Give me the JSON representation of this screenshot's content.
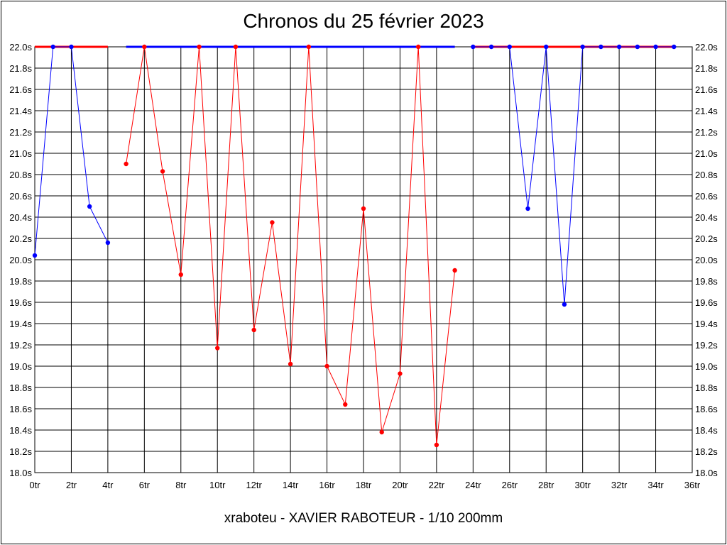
{
  "chart_data": {
    "type": "line",
    "title": "Chronos du 25 février 2023",
    "footer": "xraboteu - XAVIER RABOTEUR - 1/10 200mm",
    "xlim": [
      0,
      36
    ],
    "ylim": [
      18.0,
      22.0
    ],
    "x_ticks": [
      0,
      2,
      4,
      6,
      8,
      10,
      12,
      14,
      16,
      18,
      20,
      22,
      24,
      26,
      28,
      30,
      32,
      34,
      36
    ],
    "x_tick_labels": [
      "0tr",
      "2tr",
      "4tr",
      "6tr",
      "8tr",
      "10tr",
      "12tr",
      "14tr",
      "16tr",
      "18tr",
      "20tr",
      "22tr",
      "24tr",
      "26tr",
      "28tr",
      "30tr",
      "32tr",
      "34tr",
      "36tr"
    ],
    "y_ticks": [
      18.0,
      18.2,
      18.4,
      18.6,
      18.8,
      19.0,
      19.2,
      19.4,
      19.6,
      19.8,
      20.0,
      20.2,
      20.4,
      20.6,
      20.8,
      21.0,
      21.2,
      21.4,
      21.6,
      21.8,
      22.0
    ],
    "y_tick_labels": [
      "18.0s",
      "18.2s",
      "18.4s",
      "18.6s",
      "18.8s",
      "19.0s",
      "19.2s",
      "19.4s",
      "19.6s",
      "19.8s",
      "20.0s",
      "20.2s",
      "20.4s",
      "20.6s",
      "20.8s",
      "21.0s",
      "21.2s",
      "21.4s",
      "21.6s",
      "21.8s",
      "22.0s"
    ],
    "grid": true,
    "y_axis_labels_both_sides": true,
    "series": [
      {
        "color": "#0000ff",
        "x": [
          0,
          1,
          2,
          3,
          4
        ],
        "y": [
          20.04,
          22.0,
          22.0,
          20.5,
          20.16
        ],
        "markers": [
          true,
          true,
          true,
          true,
          true
        ]
      },
      {
        "color": "#ff0000",
        "x": [
          5,
          6,
          7,
          8,
          9,
          10,
          11,
          12,
          13,
          14,
          15,
          16,
          17,
          18,
          19,
          20,
          21,
          22,
          23
        ],
        "y": [
          20.9,
          22.0,
          20.83,
          19.86,
          22.0,
          19.17,
          22.0,
          19.34,
          20.35,
          19.02,
          22.0,
          19.0,
          18.64,
          20.48,
          18.38,
          18.93,
          22.0,
          18.26,
          19.9
        ],
        "markers": [
          true,
          true,
          true,
          true,
          true,
          true,
          true,
          true,
          true,
          true,
          true,
          true,
          true,
          true,
          true,
          true,
          true,
          true,
          true
        ]
      },
      {
        "color": "#0000ff",
        "x": [
          24,
          25,
          26,
          27,
          28,
          29,
          30,
          31,
          32,
          33,
          34,
          35
        ],
        "y": [
          22.0,
          22.0,
          22.0,
          20.48,
          22.0,
          19.58,
          22.0,
          22.0,
          22.0,
          22.0,
          22.0,
          22.0
        ],
        "markers": [
          true,
          true,
          true,
          true,
          true,
          true,
          true,
          true,
          true,
          true,
          true,
          true
        ]
      }
    ],
    "top_cap_segments": [
      {
        "color": "#ff0000",
        "x": [
          0,
          4
        ]
      },
      {
        "color": "#0000ff",
        "x": [
          5,
          23
        ]
      },
      {
        "color": "#ff0000",
        "x": [
          24,
          35
        ]
      }
    ]
  }
}
